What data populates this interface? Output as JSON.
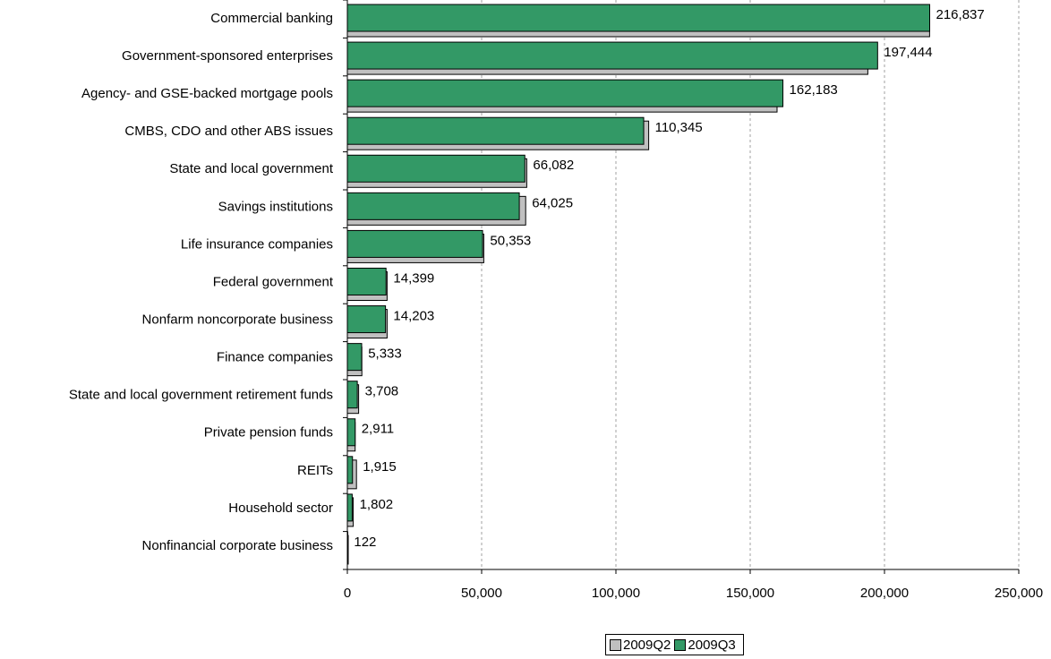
{
  "chart_data": {
    "type": "bar",
    "orientation": "horizontal",
    "categories": [
      "Commercial banking",
      "Government-sponsored enterprises",
      "Agency- and GSE-backed mortgage pools",
      "CMBS, CDO and other ABS issues",
      "State and local government",
      "Savings institutions",
      "Life insurance companies",
      "Federal government",
      "Nonfarm noncorporate business",
      "Finance companies",
      "State and local government retirement funds",
      "Private pension funds",
      "REITs",
      "Household sector",
      "Nonfinancial corporate business"
    ],
    "series": [
      {
        "name": "2009Q2",
        "color": "#c0c0c0",
        "values": [
          216800,
          193800,
          160000,
          112200,
          66800,
          66400,
          50800,
          14800,
          14800,
          5400,
          4200,
          2900,
          3400,
          2200,
          120
        ]
      },
      {
        "name": "2009Q3",
        "color": "#339966",
        "values": [
          216837,
          197444,
          162183,
          110345,
          66082,
          64025,
          50353,
          14399,
          14203,
          5333,
          3708,
          2911,
          1915,
          1802,
          122
        ]
      }
    ],
    "data_labels": [
      "216,837",
      "197,444",
      "162,183",
      "110,345",
      "66,082",
      "64,025",
      "50,353",
      "14,399",
      "14,203",
      "5,333",
      "3,708",
      "2,911",
      "1,915",
      "1,802",
      "122"
    ],
    "x_ticks": [
      "0",
      "50,000",
      "100,000",
      "150,000",
      "200,000",
      "250,000"
    ],
    "xlim": [
      0,
      250000
    ],
    "grid": "vertical dashed",
    "legend_position": "bottom"
  },
  "legend": {
    "items": [
      "2009Q2",
      "2009Q3"
    ]
  }
}
